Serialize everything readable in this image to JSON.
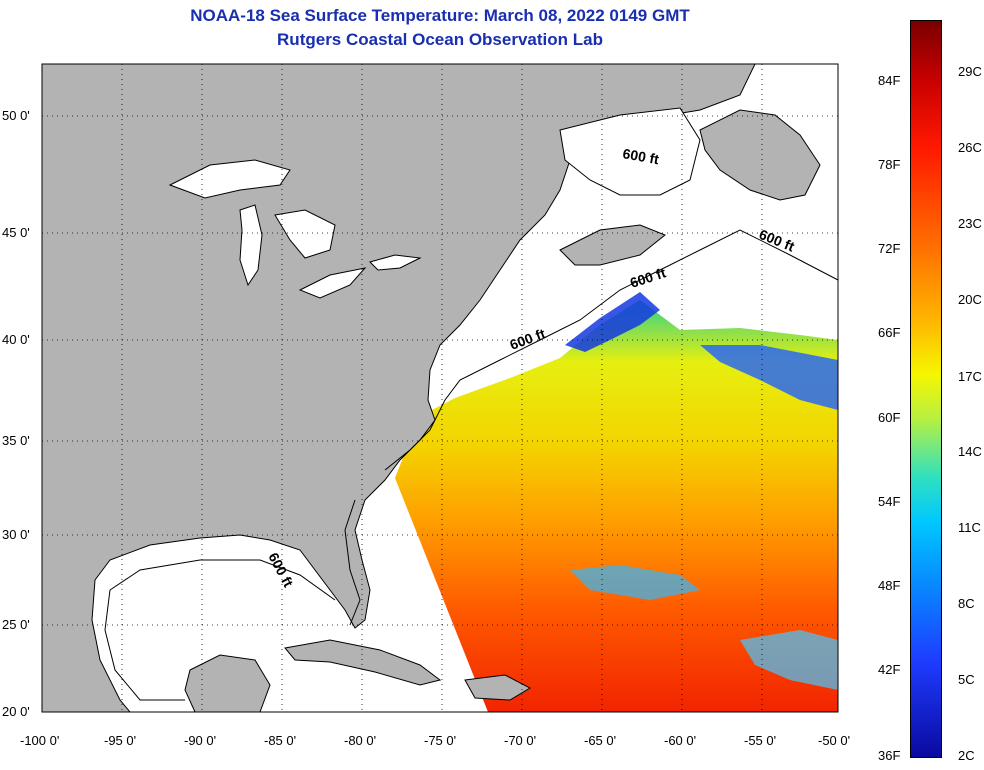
{
  "header": {
    "title": "NOAA-18 Sea Surface Temperature:  March 08, 2022 0149 GMT",
    "subtitle": "Rutgers Coastal Ocean Observation Lab"
  },
  "map": {
    "lon_labels": [
      "-100 0'",
      "-95 0'",
      "-90 0'",
      "-85 0'",
      "-80 0'",
      "-75 0'",
      "-70 0'",
      "-65 0'",
      "-60 0'",
      "-55 0'",
      "-50 0'"
    ],
    "lat_labels": [
      "50 0'",
      "45 0'",
      "40 0'",
      "35 0'",
      "30 0'",
      "25 0'",
      "20 0'"
    ],
    "contour_labels": [
      "600 ft",
      "600 ft",
      "600 ft",
      "600 ft",
      "600 ft"
    ],
    "colors": {
      "land": "#b3b3b3",
      "ocean_no_data": "#ffffff",
      "grid": "#000000"
    }
  },
  "colorbar": {
    "fahrenheit_labels": [
      "84F",
      "78F",
      "72F",
      "66F",
      "60F",
      "54F",
      "48F",
      "42F",
      "36F"
    ],
    "celsius_labels": [
      "29C",
      "26C",
      "23C",
      "20C",
      "17C",
      "14C",
      "11C",
      "8C",
      "5C",
      "2C"
    ]
  }
}
